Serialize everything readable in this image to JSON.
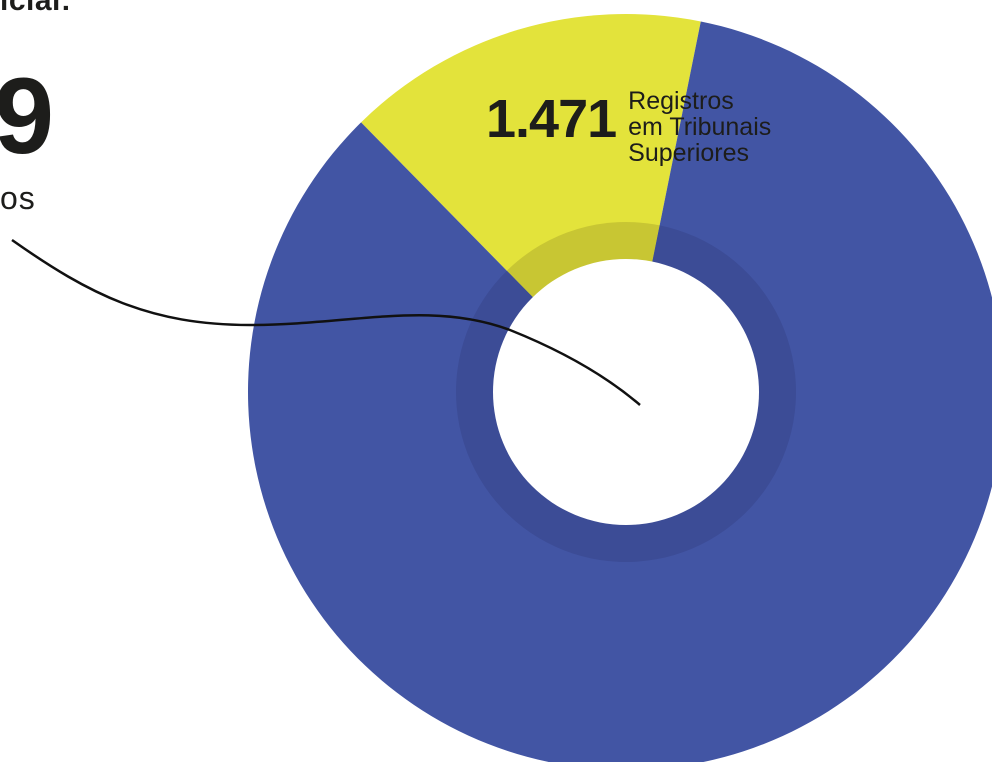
{
  "header": {
    "label_fragment": "icial:",
    "main_total_fragment": "9",
    "main_caption_fragment": "os"
  },
  "chart_data": {
    "type": "pie",
    "series": [
      {
        "name": "",
        "value": 1471,
        "value_label": "1.471",
        "label_lines": [
          "Registros",
          "em Tribunais",
          "Superiores"
        ],
        "color": "#e3e33b"
      },
      {
        "name": "",
        "value": 8000,
        "value_label": "",
        "label_lines": [],
        "color": "#4255a4"
      }
    ],
    "inner_ring_colors": {
      "yellow": "#c8c633",
      "blue": "#3c4c96"
    },
    "center_color": "#ffffff",
    "leader_line_color": "#111111"
  }
}
